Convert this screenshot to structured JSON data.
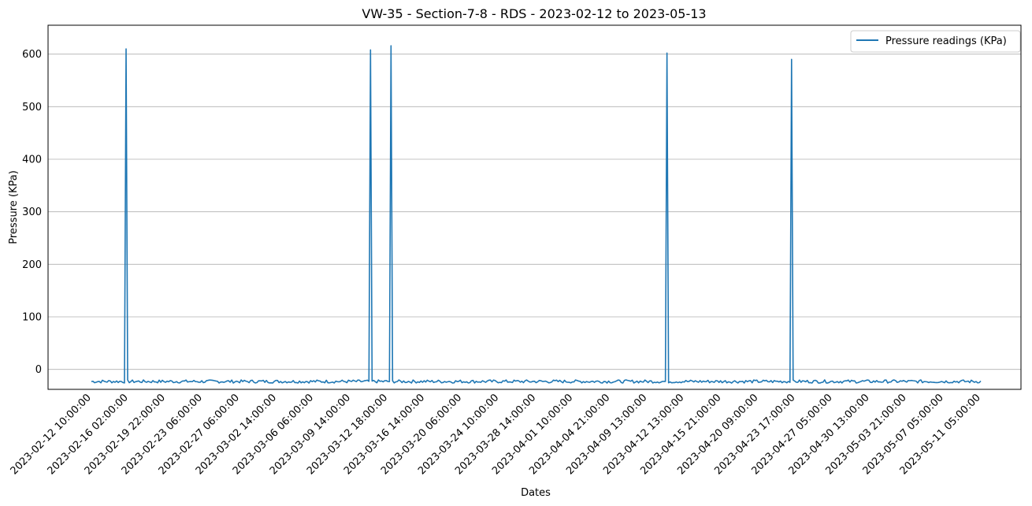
{
  "chart_data": {
    "type": "line",
    "title": "VW-35 - Section-7-8 - RDS - 2023-02-12 to 2023-05-13",
    "xlabel": "Dates",
    "ylabel": "Pressure (KPa)",
    "ylim": [
      -38,
      655
    ],
    "yticks": [
      0,
      100,
      200,
      300,
      400,
      500,
      600
    ],
    "grid": "horizontal",
    "legend_position": "top-right",
    "x_tick_labels": [
      "2023-02-12 10:00:00",
      "2023-02-16 02:00:00",
      "2023-02-19 22:00:00",
      "2023-02-23 06:00:00",
      "2023-02-27 06:00:00",
      "2023-03-02 14:00:00",
      "2023-03-06 06:00:00",
      "2023-03-09 14:00:00",
      "2023-03-12 18:00:00",
      "2023-03-16 14:00:00",
      "2023-03-20 06:00:00",
      "2023-03-24 10:00:00",
      "2023-03-28 14:00:00",
      "2023-04-01 10:00:00",
      "2023-04-04 21:00:00",
      "2023-04-09 13:00:00",
      "2023-04-12 13:00:00",
      "2023-04-15 21:00:00",
      "2023-04-20 09:00:00",
      "2023-04-23 17:00:00",
      "2023-04-27 05:00:00",
      "2023-04-30 13:00:00",
      "2023-05-03 21:00:00",
      "2023-05-07 05:00:00",
      "2023-05-11 05:00:00"
    ],
    "series": [
      {
        "name": "Pressure readings (KPa)",
        "color": "#1f77b4",
        "baseline_kpa": -23,
        "noise_amplitude_kpa": 3,
        "point_count": 565,
        "spikes": [
          {
            "after_tick": "2023-02-12 10:00:00",
            "peak_kpa": 610
          },
          {
            "after_tick": "2023-03-09 14:00:00",
            "peak_kpa": 608
          },
          {
            "after_tick": "2023-03-12 18:00:00",
            "peak_kpa": 616
          },
          {
            "after_tick": "2023-04-09 13:00:00",
            "peak_kpa": 602
          },
          {
            "after_tick": "2023-04-20 09:00:00",
            "peak_kpa": 590
          }
        ],
        "spike_offsets_ticks": [
          0.92,
          0.53,
          0.07,
          0.52,
          0.9
        ]
      }
    ]
  }
}
